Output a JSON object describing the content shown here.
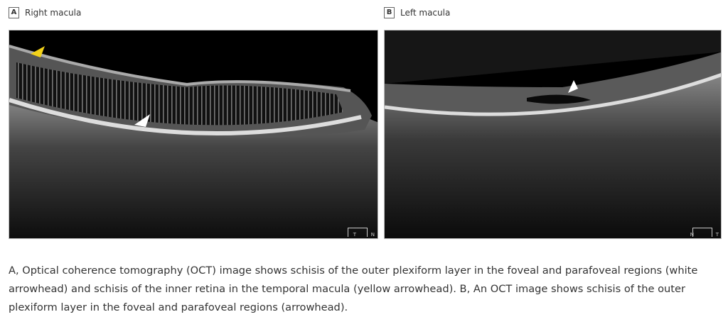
{
  "panels": [
    {
      "letter": "A",
      "title": "Right macula",
      "orient_left": "T",
      "orient_right": "N"
    },
    {
      "letter": "B",
      "title": "Left macula",
      "orient_left": "N",
      "orient_right": "T"
    }
  ],
  "arrowhead_colors": {
    "white": "#ffffff",
    "yellow": "#f2d21a"
  },
  "caption": "A, Optical coherence tomography (OCT) image shows schisis of the outer plexiform layer in the foveal and parafoveal regions (white arrowhead) and schisis of the inner retina in the temporal macula (yellow arrowhead). B, An OCT image shows schisis of the outer plexiform layer in the foveal and parafoveal regions (arrowhead)."
}
